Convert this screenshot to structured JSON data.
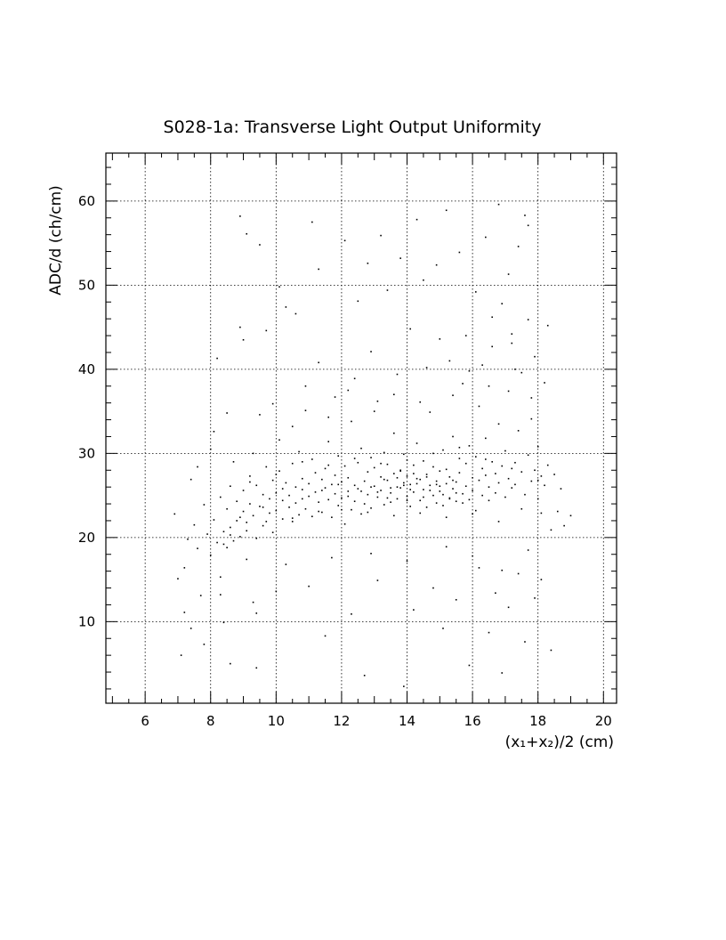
{
  "chart_data": {
    "type": "scatter",
    "title": "S028-1a: Transverse Light Output Uniformity",
    "xlabel": "(x₁+x₂)/2 (cm)",
    "ylabel": "ADC/d (ch/cm)",
    "xlim": [
      4.8,
      20.4
    ],
    "ylim": [
      0.3,
      65.7
    ],
    "x_ticks": [
      6,
      8,
      10,
      12,
      14,
      16,
      18,
      20
    ],
    "y_ticks": [
      10,
      20,
      30,
      40,
      50,
      60
    ],
    "x_tick_labels": [
      "6",
      "8",
      "10",
      "12",
      "14",
      "16",
      "18",
      "20"
    ],
    "y_tick_labels": [
      "10",
      "20",
      "30",
      "40",
      "50",
      "60"
    ],
    "grid": true,
    "legend": "none",
    "points": [
      [
        6.9,
        22.8
      ],
      [
        7.0,
        15.1
      ],
      [
        7.1,
        6.0
      ],
      [
        7.2,
        16.4
      ],
      [
        7.3,
        19.8
      ],
      [
        7.4,
        9.2
      ],
      [
        7.5,
        21.5
      ],
      [
        7.6,
        18.7
      ],
      [
        7.7,
        13.1
      ],
      [
        7.8,
        23.9
      ],
      [
        7.9,
        20.4
      ],
      [
        8.0,
        17.9
      ],
      [
        8.1,
        22.1
      ],
      [
        8.1,
        32.6
      ],
      [
        8.2,
        19.4
      ],
      [
        8.2,
        41.3
      ],
      [
        8.3,
        24.8
      ],
      [
        8.3,
        15.3
      ],
      [
        8.4,
        20.7
      ],
      [
        8.4,
        9.9
      ],
      [
        8.5,
        23.4
      ],
      [
        8.5,
        18.8
      ],
      [
        8.6,
        26.1
      ],
      [
        8.6,
        21.2
      ],
      [
        8.7,
        19.6
      ],
      [
        8.7,
        29.0
      ],
      [
        8.8,
        24.3
      ],
      [
        8.8,
        22.0
      ],
      [
        8.9,
        20.1
      ],
      [
        8.9,
        45.0
      ],
      [
        9.0,
        25.6
      ],
      [
        9.0,
        23.1
      ],
      [
        9.1,
        21.8
      ],
      [
        9.1,
        17.4
      ],
      [
        9.2,
        27.3
      ],
      [
        9.2,
        24.0
      ],
      [
        9.3,
        22.6
      ],
      [
        9.3,
        12.3
      ],
      [
        9.4,
        26.2
      ],
      [
        9.4,
        19.9
      ],
      [
        9.5,
        23.7
      ],
      [
        9.5,
        34.6
      ],
      [
        9.6,
        25.1
      ],
      [
        9.6,
        21.4
      ],
      [
        9.7,
        28.4
      ],
      [
        9.7,
        44.6
      ],
      [
        9.8,
        24.6
      ],
      [
        9.8,
        22.9
      ],
      [
        9.9,
        26.8
      ],
      [
        9.9,
        20.6
      ],
      [
        10.0,
        25.3
      ],
      [
        10.0,
        23.2
      ],
      [
        10.1,
        27.9
      ],
      [
        10.1,
        31.6
      ],
      [
        10.2,
        24.4
      ],
      [
        10.2,
        22.2
      ],
      [
        10.3,
        26.5
      ],
      [
        10.3,
        47.4
      ],
      [
        10.4,
        25.0
      ],
      [
        10.4,
        23.6
      ],
      [
        10.5,
        28.8
      ],
      [
        10.5,
        21.9
      ],
      [
        10.6,
        26.0
      ],
      [
        10.6,
        24.1
      ],
      [
        10.7,
        30.2
      ],
      [
        10.7,
        22.7
      ],
      [
        10.8,
        25.7
      ],
      [
        10.8,
        27.0
      ],
      [
        10.9,
        23.4
      ],
      [
        10.9,
        35.1
      ],
      [
        11.0,
        26.4
      ],
      [
        11.0,
        24.9
      ],
      [
        11.1,
        29.3
      ],
      [
        11.1,
        22.5
      ],
      [
        11.2,
        25.4
      ],
      [
        11.2,
        27.7
      ],
      [
        11.3,
        24.2
      ],
      [
        11.3,
        40.8
      ],
      [
        11.4,
        26.9
      ],
      [
        11.4,
        23.0
      ],
      [
        11.5,
        28.2
      ],
      [
        11.5,
        25.9
      ],
      [
        11.6,
        24.5
      ],
      [
        11.6,
        31.4
      ],
      [
        11.7,
        26.3
      ],
      [
        11.7,
        22.4
      ],
      [
        11.8,
        27.4
      ],
      [
        11.8,
        25.2
      ],
      [
        11.9,
        23.8
      ],
      [
        11.9,
        29.7
      ],
      [
        12.0,
        26.6
      ],
      [
        12.0,
        24.7
      ],
      [
        12.1,
        28.5
      ],
      [
        12.1,
        21.6
      ],
      [
        12.2,
        25.5
      ],
      [
        12.2,
        27.1
      ],
      [
        12.3,
        23.3
      ],
      [
        12.3,
        33.8
      ],
      [
        12.4,
        26.2
      ],
      [
        12.4,
        24.3
      ],
      [
        12.5,
        28.9
      ],
      [
        12.5,
        25.8
      ],
      [
        12.6,
        22.8
      ],
      [
        12.6,
        30.6
      ],
      [
        12.7,
        26.7
      ],
      [
        12.7,
        24.0
      ],
      [
        12.8,
        27.8
      ],
      [
        12.8,
        25.1
      ],
      [
        12.9,
        29.5
      ],
      [
        12.9,
        23.5
      ],
      [
        13.0,
        26.1
      ],
      [
        13.0,
        28.3
      ],
      [
        13.1,
        24.8
      ],
      [
        13.1,
        36.2
      ],
      [
        13.2,
        27.2
      ],
      [
        13.2,
        25.6
      ],
      [
        13.3,
        30.1
      ],
      [
        13.3,
        23.9
      ],
      [
        13.4,
        26.8
      ],
      [
        13.4,
        28.7
      ],
      [
        13.5,
        25.3
      ],
      [
        13.5,
        24.2
      ],
      [
        13.6,
        27.6
      ],
      [
        13.6,
        32.4
      ],
      [
        13.7,
        26.0
      ],
      [
        13.7,
        24.6
      ],
      [
        13.8,
        28.0
      ],
      [
        13.8,
        25.9
      ],
      [
        13.9,
        26.5
      ],
      [
        13.9,
        29.9
      ],
      [
        14.0,
        24.9
      ],
      [
        14.0,
        27.3
      ],
      [
        14.1,
        26.3
      ],
      [
        14.1,
        23.7
      ],
      [
        14.2,
        28.6
      ],
      [
        14.2,
        25.4
      ],
      [
        14.3,
        27.0
      ],
      [
        14.3,
        31.2
      ],
      [
        14.4,
        24.4
      ],
      [
        14.4,
        26.9
      ],
      [
        14.5,
        25.7
      ],
      [
        14.5,
        29.1
      ],
      [
        14.6,
        27.5
      ],
      [
        14.6,
        23.6
      ],
      [
        14.7,
        26.2
      ],
      [
        14.7,
        34.9
      ],
      [
        14.8,
        25.0
      ],
      [
        14.8,
        28.4
      ],
      [
        14.9,
        26.7
      ],
      [
        14.9,
        24.1
      ],
      [
        15.0,
        27.9
      ],
      [
        15.0,
        25.5
      ],
      [
        15.1,
        30.4
      ],
      [
        15.1,
        23.8
      ],
      [
        15.2,
        26.4
      ],
      [
        15.2,
        28.1
      ],
      [
        15.3,
        24.7
      ],
      [
        15.3,
        27.2
      ],
      [
        15.4,
        25.8
      ],
      [
        15.4,
        32.0
      ],
      [
        15.5,
        26.6
      ],
      [
        15.5,
        24.3
      ],
      [
        15.6,
        29.4
      ],
      [
        15.6,
        27.7
      ],
      [
        15.7,
        25.2
      ],
      [
        15.7,
        38.3
      ],
      [
        15.8,
        26.1
      ],
      [
        15.8,
        28.8
      ],
      [
        15.9,
        24.5
      ],
      [
        15.9,
        30.9
      ],
      [
        16.0,
        27.1
      ],
      [
        16.0,
        25.6
      ],
      [
        16.1,
        29.6
      ],
      [
        16.1,
        23.2
      ],
      [
        16.2,
        26.8
      ],
      [
        16.2,
        35.6
      ],
      [
        16.3,
        28.2
      ],
      [
        16.3,
        25.0
      ],
      [
        16.4,
        27.4
      ],
      [
        16.4,
        31.8
      ],
      [
        16.5,
        26.0
      ],
      [
        16.5,
        24.4
      ],
      [
        16.6,
        29.0
      ],
      [
        16.6,
        42.7
      ],
      [
        16.7,
        27.6
      ],
      [
        16.7,
        25.3
      ],
      [
        16.8,
        33.5
      ],
      [
        16.8,
        26.5
      ],
      [
        16.9,
        28.5
      ],
      [
        16.9,
        47.8
      ],
      [
        17.0,
        24.8
      ],
      [
        17.0,
        30.3
      ],
      [
        17.1,
        27.0
      ],
      [
        17.1,
        37.4
      ],
      [
        17.2,
        25.9
      ],
      [
        17.2,
        44.2
      ],
      [
        17.3,
        28.9
      ],
      [
        17.3,
        26.3
      ],
      [
        17.4,
        32.7
      ],
      [
        17.4,
        54.6
      ],
      [
        17.5,
        27.8
      ],
      [
        17.5,
        39.6
      ],
      [
        17.6,
        25.1
      ],
      [
        17.6,
        58.3
      ],
      [
        17.7,
        29.8
      ],
      [
        17.7,
        45.9
      ],
      [
        17.8,
        26.7
      ],
      [
        17.8,
        34.1
      ],
      [
        17.9,
        28.0
      ],
      [
        17.9,
        41.5
      ],
      [
        18.0,
        24.6
      ],
      [
        18.0,
        30.8
      ],
      [
        18.1,
        27.3
      ],
      [
        18.1,
        22.9
      ],
      [
        18.2,
        26.2
      ],
      [
        18.3,
        28.6
      ],
      [
        18.4,
        20.9
      ],
      [
        18.5,
        27.5
      ],
      [
        18.6,
        23.1
      ],
      [
        18.7,
        25.8
      ],
      [
        18.8,
        21.4
      ],
      [
        19.0,
        22.6
      ],
      [
        8.9,
        58.2
      ],
      [
        9.1,
        56.1
      ],
      [
        9.5,
        54.8
      ],
      [
        10.1,
        49.8
      ],
      [
        10.6,
        46.6
      ],
      [
        11.1,
        57.5
      ],
      [
        11.3,
        51.9
      ],
      [
        12.1,
        55.3
      ],
      [
        12.5,
        48.1
      ],
      [
        12.8,
        52.6
      ],
      [
        13.2,
        55.9
      ],
      [
        13.4,
        49.4
      ],
      [
        13.8,
        53.2
      ],
      [
        14.3,
        57.8
      ],
      [
        14.5,
        50.6
      ],
      [
        14.9,
        52.4
      ],
      [
        15.2,
        58.9
      ],
      [
        15.6,
        53.9
      ],
      [
        16.1,
        49.2
      ],
      [
        16.4,
        55.7
      ],
      [
        16.8,
        59.6
      ],
      [
        17.1,
        51.3
      ],
      [
        17.7,
        57.1
      ],
      [
        18.3,
        45.2
      ],
      [
        12.4,
        38.9
      ],
      [
        12.9,
        42.1
      ],
      [
        13.7,
        39.4
      ],
      [
        14.1,
        44.8
      ],
      [
        14.6,
        40.2
      ],
      [
        15.0,
        43.6
      ],
      [
        15.3,
        41.0
      ],
      [
        15.8,
        44.0
      ],
      [
        16.3,
        40.5
      ],
      [
        16.6,
        46.2
      ],
      [
        17.2,
        43.1
      ],
      [
        11.8,
        36.7
      ],
      [
        10.9,
        38.0
      ],
      [
        9.9,
        35.9
      ],
      [
        9.0,
        43.5
      ],
      [
        8.5,
        34.8
      ],
      [
        7.6,
        28.4
      ],
      [
        8.0,
        30.5
      ],
      [
        7.4,
        26.9
      ],
      [
        9.3,
        30.0
      ],
      [
        10.5,
        33.2
      ],
      [
        11.6,
        34.3
      ],
      [
        12.2,
        37.5
      ],
      [
        13.0,
        35.0
      ],
      [
        13.6,
        37.0
      ],
      [
        14.4,
        36.1
      ],
      [
        15.4,
        36.9
      ],
      [
        15.9,
        39.8
      ],
      [
        16.5,
        38.0
      ],
      [
        17.3,
        40.0
      ],
      [
        17.8,
        36.6
      ],
      [
        18.2,
        38.4
      ],
      [
        9.4,
        11.0
      ],
      [
        10.0,
        13.6
      ],
      [
        11.0,
        14.2
      ],
      [
        11.5,
        8.3
      ],
      [
        12.3,
        10.9
      ],
      [
        12.7,
        3.6
      ],
      [
        13.1,
        14.9
      ],
      [
        13.9,
        2.3
      ],
      [
        14.2,
        11.4
      ],
      [
        14.8,
        14.0
      ],
      [
        15.1,
        9.2
      ],
      [
        15.5,
        12.6
      ],
      [
        15.9,
        4.8
      ],
      [
        16.2,
        16.4
      ],
      [
        16.5,
        8.7
      ],
      [
        16.7,
        13.4
      ],
      [
        16.9,
        3.9
      ],
      [
        17.1,
        11.7
      ],
      [
        17.4,
        15.7
      ],
      [
        17.6,
        7.6
      ],
      [
        17.9,
        12.8
      ],
      [
        18.4,
        6.6
      ],
      [
        8.6,
        5.0
      ],
      [
        9.4,
        4.5
      ],
      [
        7.2,
        11.1
      ],
      [
        7.8,
        7.3
      ],
      [
        8.3,
        13.2
      ],
      [
        10.3,
        16.8
      ],
      [
        11.7,
        17.6
      ],
      [
        12.9,
        18.1
      ],
      [
        14.0,
        17.2
      ],
      [
        15.2,
        18.9
      ],
      [
        16.0,
        17.8
      ],
      [
        16.9,
        16.1
      ],
      [
        17.7,
        18.5
      ],
      [
        18.1,
        15.0
      ],
      [
        12.9,
        26.0
      ],
      [
        13.1,
        25.4
      ],
      [
        13.3,
        26.9
      ],
      [
        13.5,
        25.9
      ],
      [
        13.7,
        27.1
      ],
      [
        13.9,
        26.2
      ],
      [
        14.1,
        25.7
      ],
      [
        14.3,
        26.4
      ],
      [
        14.5,
        24.8
      ],
      [
        14.7,
        25.6
      ],
      [
        14.9,
        26.3
      ],
      [
        15.1,
        25.1
      ],
      [
        15.3,
        24.6
      ],
      [
        15.5,
        25.3
      ],
      [
        15.7,
        24.1
      ],
      [
        14.0,
        24.4
      ],
      [
        13.8,
        27.9
      ],
      [
        14.2,
        27.6
      ],
      [
        14.6,
        27.2
      ],
      [
        15.0,
        26.1
      ],
      [
        15.4,
        26.8
      ],
      [
        13.4,
        24.7
      ],
      [
        12.6,
        25.5
      ],
      [
        12.2,
        24.9
      ],
      [
        11.9,
        26.3
      ],
      [
        11.4,
        25.6
      ],
      [
        10.8,
        24.6
      ],
      [
        10.2,
        25.8
      ],
      [
        9.6,
        23.6
      ],
      [
        8.9,
        22.4
      ],
      [
        8.6,
        20.3
      ],
      [
        8.4,
        19.2
      ],
      [
        9.1,
        20.8
      ],
      [
        9.7,
        21.9
      ],
      [
        10.5,
        22.3
      ],
      [
        11.3,
        23.1
      ],
      [
        12.0,
        23.3
      ],
      [
        12.8,
        23.0
      ],
      [
        13.6,
        22.6
      ],
      [
        14.4,
        22.9
      ],
      [
        15.2,
        22.4
      ],
      [
        16.0,
        22.8
      ],
      [
        16.8,
        21.9
      ],
      [
        17.5,
        23.4
      ],
      [
        18.0,
        26.8
      ],
      [
        17.2,
        28.2
      ],
      [
        16.4,
        29.3
      ],
      [
        15.6,
        30.7
      ],
      [
        14.8,
        30.0
      ],
      [
        14.0,
        29.2
      ],
      [
        13.2,
        28.8
      ],
      [
        12.4,
        29.4
      ],
      [
        11.6,
        28.6
      ],
      [
        10.8,
        29.0
      ],
      [
        10.0,
        27.5
      ],
      [
        9.2,
        26.6
      ]
    ]
  }
}
